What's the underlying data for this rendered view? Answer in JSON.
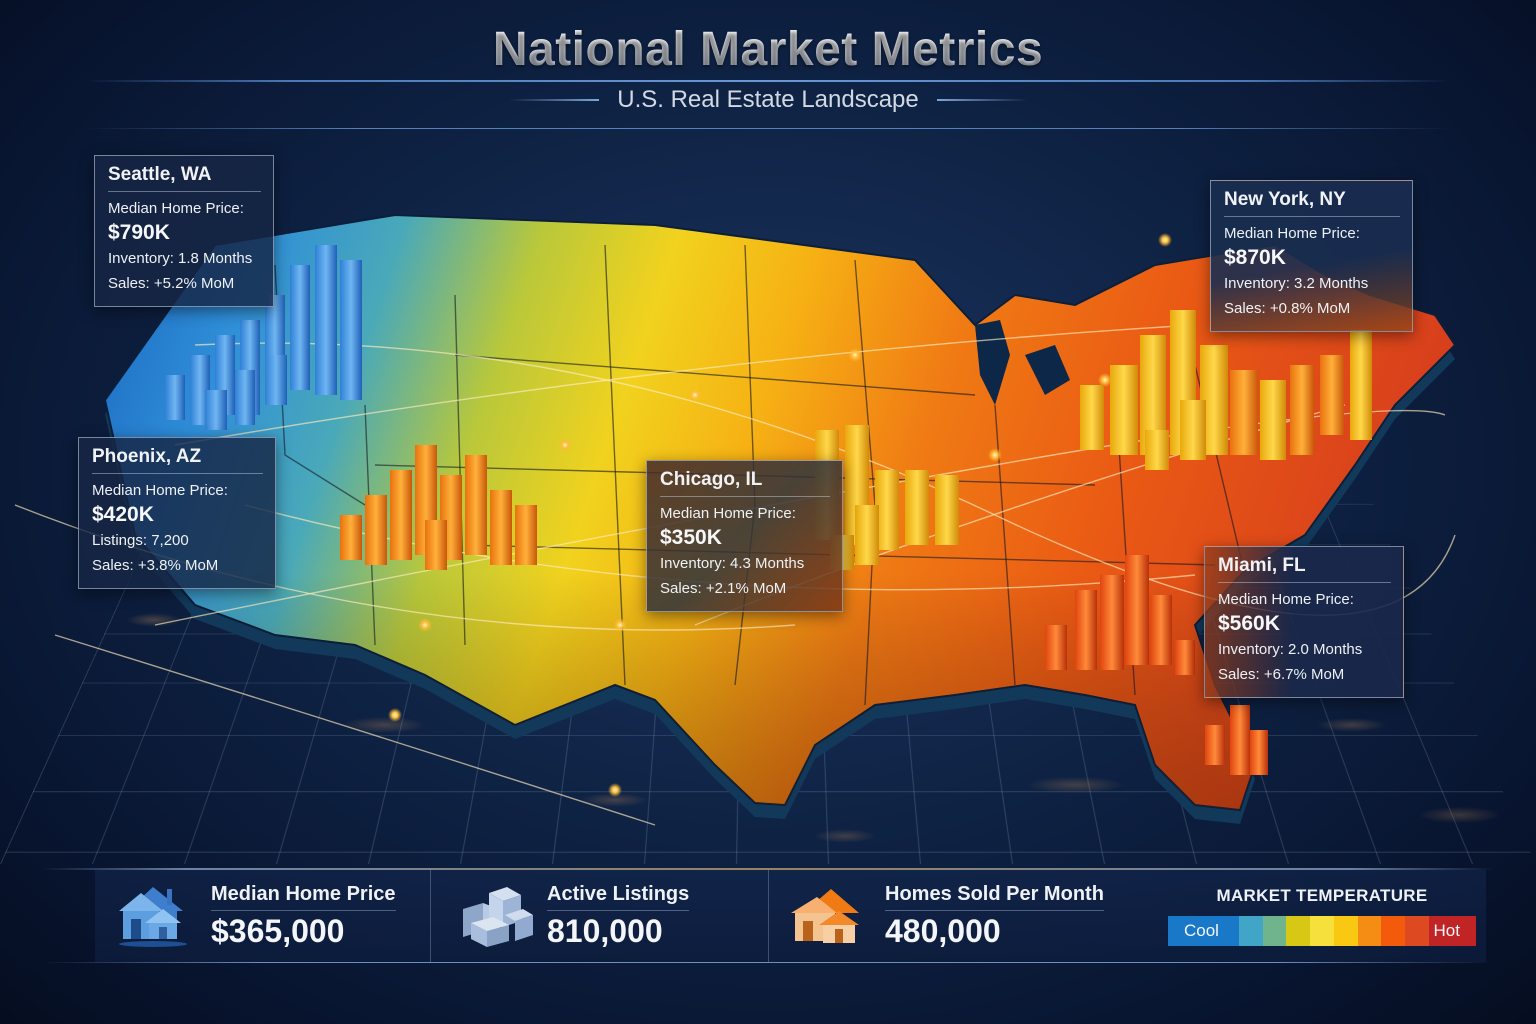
{
  "header": {
    "title": "National Market Metrics",
    "subtitle": "U.S. Real Estate Landscape"
  },
  "callouts": [
    {
      "city": "Seattle, WA",
      "price_label": "Median Home Price:",
      "price": "$790K",
      "line1": "Inventory: 1.8 Months",
      "line2": "Sales: +5.2% MoM",
      "bar_color": "#3a8fe0"
    },
    {
      "city": "Phoenix, AZ",
      "price_label": "Median Home Price:",
      "price": "$420K",
      "line1": "Listings: 7,200",
      "line2": "Sales: +3.8% MoM",
      "bar_color": "#f0a020"
    },
    {
      "city": "Chicago, IL",
      "price_label": "Median Home Price:",
      "price": "$350K",
      "line1": "Inventory: 4.3 Months",
      "line2": "Sales: +2.1% MoM",
      "bar_color": "#f2c21c"
    },
    {
      "city": "New York, NY",
      "price_label": "Median Home Price:",
      "price": "$870K",
      "line1": "Inventory: 3.2 Months",
      "line2": "Sales: +0.8% MoM",
      "bar_color": "#f5b820"
    },
    {
      "city": "Miami, FL",
      "price_label": "Median Home Price:",
      "price": "$560K",
      "line1": "Inventory: 2.0 Months",
      "line2": "Sales: +6.7% MoM",
      "bar_color": "#e8551e"
    }
  ],
  "summary": [
    {
      "label": "Median Home Price",
      "value": "$365,000",
      "icon": "house-icon"
    },
    {
      "label": "Active Listings",
      "value": "810,000",
      "icon": "buildings-icon"
    },
    {
      "label": "Homes Sold Per Month",
      "value": "480,000",
      "icon": "sold-house-icon"
    }
  ],
  "legend": {
    "title": "MARKET TEMPERATURE",
    "low_label": "Cool",
    "high_label": "Hot",
    "colors": [
      "#1a78c8",
      "#1a78c8",
      "#1a78c8",
      "#41a5c8",
      "#6fb48c",
      "#d8c816",
      "#f6e13c",
      "#f8c812",
      "#f58c14",
      "#f45a0c",
      "#dd4a22",
      "#c02424",
      "#c02424"
    ]
  },
  "chart_data": {
    "type": "bar",
    "title": "National Market Metrics",
    "subtitle": "U.S. Real Estate Landscape",
    "categories": [
      "Seattle, WA",
      "Phoenix, AZ",
      "Chicago, IL",
      "New York, NY",
      "Miami, FL"
    ],
    "series": [
      {
        "name": "Median Home Price ($K)",
        "values": [
          790,
          420,
          350,
          870,
          560
        ]
      },
      {
        "name": "Sales MoM Change (%)",
        "values": [
          5.2,
          3.8,
          2.1,
          0.8,
          6.7
        ]
      },
      {
        "name": "Inventory (Months)",
        "values": [
          1.8,
          null,
          4.3,
          3.2,
          2.0
        ]
      },
      {
        "name": "Listings",
        "values": [
          null,
          7200,
          null,
          null,
          null
        ]
      }
    ],
    "national_summary": {
      "median_home_price": 365000,
      "active_listings": 810000,
      "homes_sold_per_month": 480000
    },
    "legend": {
      "title": "Market Temperature",
      "scale": [
        "Cool",
        "Hot"
      ],
      "position": "bottom-right"
    },
    "xlabel": "",
    "ylabel": "",
    "grid": true
  }
}
